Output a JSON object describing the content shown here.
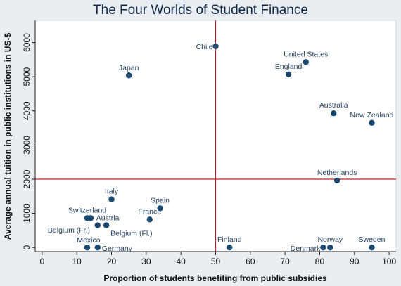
{
  "chart_data": {
    "type": "scatter",
    "title": "The Four Worlds of Student Finance",
    "xlabel": "Proportion of students benefiting from public subsidies",
    "ylabel": "Average annual tuition in public institutions in US-$",
    "xlim": [
      -2,
      102
    ],
    "ylim": [
      -120,
      6650
    ],
    "xticks": [
      0,
      10,
      20,
      30,
      40,
      50,
      60,
      70,
      80,
      90,
      100
    ],
    "yticks": [
      0,
      1000,
      2000,
      3000,
      4000,
      5000,
      6000
    ],
    "reference_lines": {
      "x": 50,
      "y": 2000,
      "color": "#c0202a"
    },
    "grid": false,
    "point_color": "#1a4a70",
    "points": [
      {
        "label": "Chile",
        "x": 50,
        "y": 5890,
        "anchor": "end",
        "dx": -4,
        "dy": 4
      },
      {
        "label": "United States",
        "x": 76,
        "y": 5430,
        "anchor": "middle",
        "dx": 0,
        "dy": -8
      },
      {
        "label": "England",
        "x": 71,
        "y": 5070,
        "anchor": "middle",
        "dx": 0,
        "dy": -8
      },
      {
        "label": "Japan",
        "x": 25,
        "y": 5040,
        "anchor": "middle",
        "dx": 0,
        "dy": -7
      },
      {
        "label": "Australia",
        "x": 84,
        "y": 3930,
        "anchor": "middle",
        "dx": 0,
        "dy": -8
      },
      {
        "label": "New Zealand",
        "x": 95,
        "y": 3650,
        "anchor": "middle",
        "dx": 0,
        "dy": -8
      },
      {
        "label": "Netherlands",
        "x": 85,
        "y": 1960,
        "anchor": "middle",
        "dx": 0,
        "dy": -8
      },
      {
        "label": "Italy",
        "x": 20,
        "y": 1410,
        "anchor": "middle",
        "dx": 0,
        "dy": -8
      },
      {
        "label": "Spain",
        "x": 34,
        "y": 1150,
        "anchor": "middle",
        "dx": 0,
        "dy": -8
      },
      {
        "label": "France",
        "x": 31,
        "y": 820,
        "anchor": "middle",
        "dx": 0,
        "dy": -8
      },
      {
        "label": "Switzerland",
        "x": 13,
        "y": 860,
        "anchor": "middle",
        "dx": 0,
        "dy": -8
      },
      {
        "label": "",
        "x": 14,
        "y": 860,
        "anchor": "middle",
        "dx": 0,
        "dy": 0
      },
      {
        "label": "Austria",
        "x": 16,
        "y": 650,
        "anchor": "start",
        "dx": -2,
        "dy": -7
      },
      {
        "label": "Belgium (Fl.)",
        "x": 18.5,
        "y": 650,
        "anchor": "start",
        "dx": 6,
        "dy": 15
      },
      {
        "label": "Belgium (Fr.)",
        "x": 13,
        "y": 0,
        "anchor": "end",
        "dx": 4,
        "dy": -21
      },
      {
        "label": "Mexico",
        "x": 13,
        "y": 0,
        "anchor": "middle",
        "dx": 2,
        "dy": -7
      },
      {
        "label": "Germany",
        "x": 16,
        "y": 0,
        "anchor": "start",
        "dx": 6,
        "dy": 5
      },
      {
        "label": "Finland",
        "x": 54,
        "y": 0,
        "anchor": "middle",
        "dx": 0,
        "dy": -8
      },
      {
        "label": "Denmark",
        "x": 81,
        "y": 0,
        "anchor": "end",
        "dx": -4,
        "dy": 5
      },
      {
        "label": "",
        "x": 83,
        "y": 0,
        "anchor": "middle",
        "dx": 0,
        "dy": 0
      },
      {
        "label": "Norway",
        "x": 83,
        "y": 0,
        "anchor": "middle",
        "dx": 0,
        "dy": -8
      },
      {
        "label": "Sweden",
        "x": 95,
        "y": 0,
        "anchor": "middle",
        "dx": 0,
        "dy": -8
      }
    ]
  }
}
